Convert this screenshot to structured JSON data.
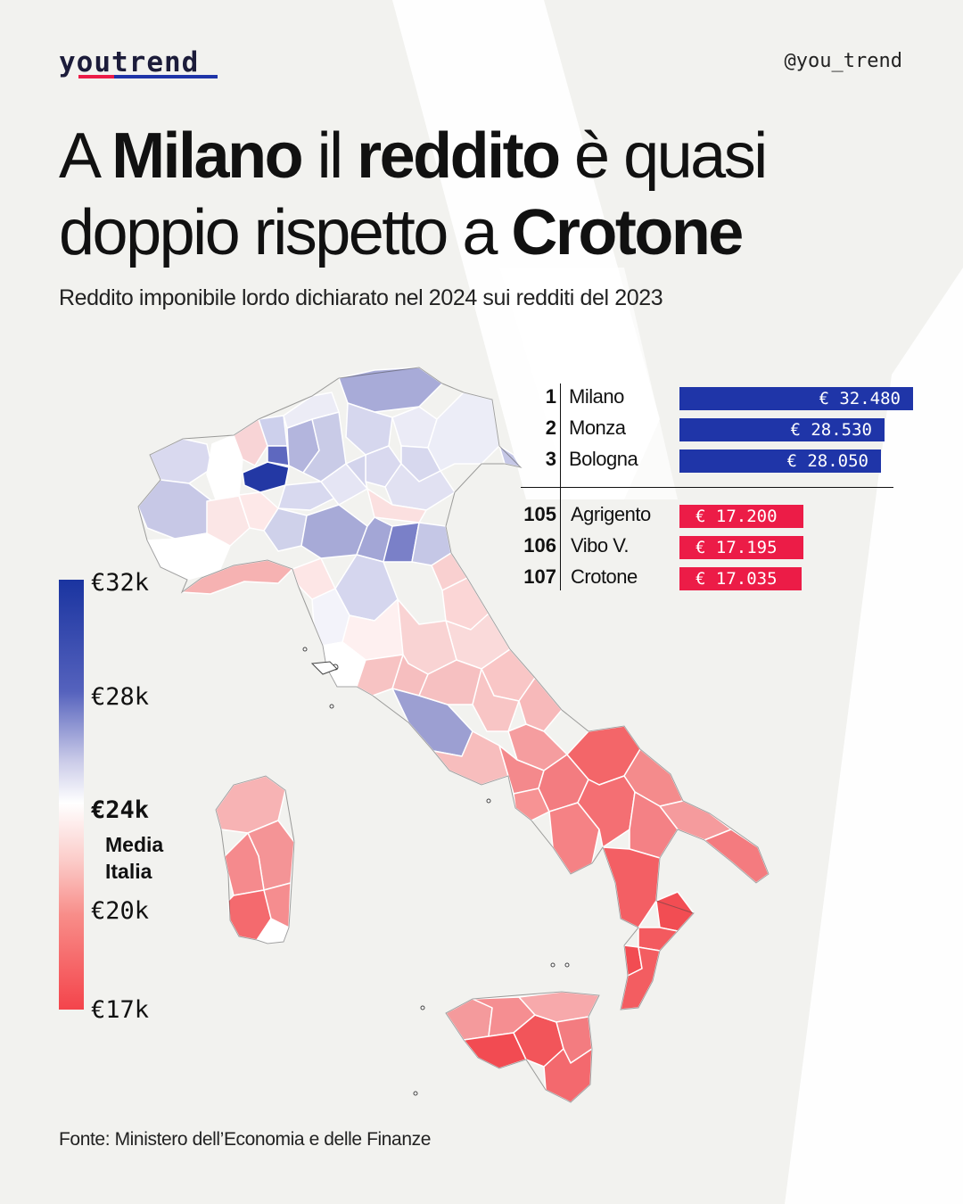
{
  "brand": {
    "logo": "youtrend",
    "handle": "@you_trend"
  },
  "headline": {
    "part1": "A ",
    "bold1": "Milano",
    "part2": " il ",
    "bold2": "reddito",
    "part3": " è quasi",
    "part4": "doppio rispetto a ",
    "bold3": "Crotone"
  },
  "subtitle": "Reddito imponibile lordo dichiarato nel 2024 sui redditi del 2023",
  "legend": {
    "max": "€32k",
    "upper": "€28k",
    "mid": "€24k",
    "mid_note_1": "Media",
    "mid_note_2": "Italia",
    "lower": "€20k",
    "min": "€17k",
    "colors": {
      "high": "#1a34a0",
      "mid": "#ffffff",
      "low": "#f4444b"
    }
  },
  "ranking": {
    "top": [
      {
        "rank": "1",
        "name": "Milano",
        "value": "€ 32.480",
        "amount": 32480
      },
      {
        "rank": "2",
        "name": "Monza",
        "value": "€ 28.530",
        "amount": 28530
      },
      {
        "rank": "3",
        "name": "Bologna",
        "value": "€ 28.050",
        "amount": 28050
      }
    ],
    "bottom": [
      {
        "rank": "105",
        "name": "Agrigento",
        "value": "€ 17.200",
        "amount": 17200
      },
      {
        "rank": "106",
        "name": "Vibo V.",
        "value": "€ 17.195",
        "amount": 17195
      },
      {
        "rank": "107",
        "name": "Crotone",
        "value": "€ 17.035",
        "amount": 17035
      }
    ],
    "colors": {
      "top": "#1f35a8",
      "bottom": "#ec1c47"
    }
  },
  "source": "Fonte: Ministero dell’Economia e delle Finanze"
}
